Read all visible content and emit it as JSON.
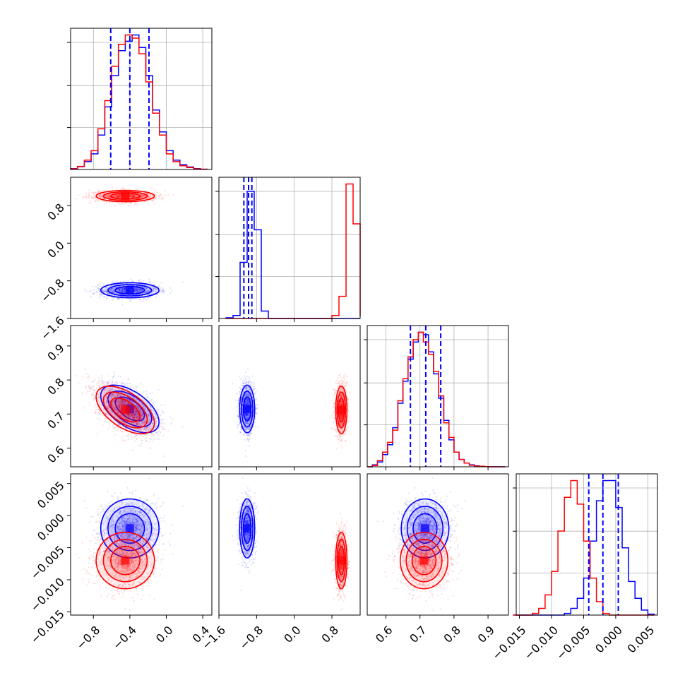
{
  "chart_data": {
    "type": "corner",
    "grid": true,
    "colors": {
      "blue": "#0000ff",
      "red": "#ff0000"
    },
    "series": [
      {
        "color": "blue",
        "means": [
          -0.4,
          -1.0,
          0.715,
          -0.002
        ],
        "sds": [
          0.16,
          0.08,
          0.035,
          0.0023
        ],
        "cross_corr_01": -0.55
      },
      {
        "color": "red",
        "means": [
          -0.45,
          1.0,
          0.712,
          -0.007
        ],
        "sds": [
          0.16,
          0.06,
          0.035,
          0.0022
        ],
        "cross_corr_01": -0.55
      }
    ],
    "quantile_lines": {
      "color": "blue",
      "p0": [
        -0.61,
        -0.4,
        -0.19
      ],
      "p1": [
        -1.07,
        -0.97,
        -0.9
      ],
      "p2": [
        0.672,
        0.717,
        0.761
      ],
      "p3": [
        -0.0042,
        -0.002,
        0.0004
      ]
    },
    "marginals": [
      {
        "param": 0,
        "bins": [
          -1.05,
          -0.975,
          -0.9,
          -0.825,
          -0.75,
          -0.675,
          -0.6,
          -0.525,
          -0.45,
          -0.375,
          -0.3,
          -0.225,
          -0.15,
          -0.075,
          0.0,
          0.075,
          0.15,
          0.225,
          0.3,
          0.375,
          0.45
        ],
        "blue": [
          0.3,
          0.9,
          2.5,
          5,
          11,
          20,
          30,
          38,
          41,
          43,
          39,
          30,
          19,
          12,
          6,
          3,
          1.5,
          0.8,
          0.3,
          0.1
        ],
        "red": [
          0.2,
          1,
          3,
          6,
          13,
          22,
          33,
          40,
          43,
          42,
          37,
          28,
          18,
          11,
          5,
          2.5,
          1.2,
          0.6,
          0.2,
          0.1
        ]
      },
      {
        "param": 1,
        "bins": [
          -1.45,
          -1.3,
          -1.15,
          -1.0,
          -0.85,
          -0.7,
          -0.55,
          -0.4,
          -0.25,
          -0.1,
          0.05,
          0.2,
          0.35,
          0.5,
          0.65,
          0.8,
          0.95,
          1.1,
          1.25,
          1.4
        ],
        "blue": [
          0.5,
          2,
          38,
          86,
          60,
          5,
          0,
          0,
          0,
          0,
          0,
          0,
          0,
          0,
          0,
          0,
          0,
          0,
          0
        ],
        "red": [
          0,
          0,
          0,
          0,
          0,
          0,
          0,
          0,
          0,
          0,
          0,
          0,
          0,
          0,
          0,
          2,
          15,
          91,
          64,
          1.5
        ]
      },
      {
        "param": 2,
        "bins": [
          0.545,
          0.56,
          0.575,
          0.59,
          0.605,
          0.62,
          0.635,
          0.65,
          0.665,
          0.68,
          0.695,
          0.71,
          0.725,
          0.74,
          0.755,
          0.77,
          0.785,
          0.8,
          0.815,
          0.83,
          0.845,
          0.86,
          0.875,
          0.89,
          0.905,
          0.92,
          0.935,
          0.95
        ],
        "blue": [
          0,
          0.8,
          2,
          5,
          9,
          16,
          26,
          35,
          44,
          51,
          55,
          54,
          47,
          38,
          28,
          19,
          11,
          6,
          3,
          1.5,
          0.8,
          0.4,
          0.2,
          0.1,
          0,
          0,
          0
        ],
        "red": [
          0,
          0.5,
          2.5,
          6,
          10,
          15,
          27,
          36,
          45,
          52,
          55,
          51,
          46,
          39,
          29,
          18,
          12,
          6,
          3,
          1.5,
          0.6,
          0.3,
          0.2,
          0.1,
          0,
          0,
          0
        ]
      },
      {
        "param": 3,
        "bins": [
          -0.016,
          -0.015,
          -0.014,
          -0.013,
          -0.012,
          -0.011,
          -0.01,
          -0.009,
          -0.008,
          -0.007,
          -0.006,
          -0.005,
          -0.004,
          -0.003,
          -0.002,
          -0.001,
          0.0,
          0.001,
          0.002,
          0.003,
          0.004,
          0.005,
          0.006
        ],
        "blue": [
          0,
          0,
          0,
          0,
          0,
          0,
          0,
          0,
          0.5,
          2,
          5,
          11,
          22,
          34,
          40,
          40,
          32,
          20,
          10,
          5,
          1.5,
          0.3
        ],
        "red": [
          0,
          0,
          0,
          0.5,
          2,
          6,
          13,
          25,
          35,
          40,
          33,
          22,
          11,
          4,
          0.5,
          0,
          0,
          0,
          0,
          0,
          0,
          0
        ]
      }
    ],
    "axes": [
      {
        "param": 0,
        "lim": [
          -1.05,
          0.5
        ],
        "ticks": [
          -0.8,
          -0.4,
          0.0,
          0.4
        ],
        "ticklabels": [
          "−0.8",
          "−0.4",
          "0.0",
          "0.4"
        ]
      },
      {
        "param": 1,
        "lim": [
          -1.6,
          1.4
        ],
        "ticks": [
          -1.6,
          -0.8,
          0.0,
          0.8
        ],
        "ticklabels": [
          "−1.6",
          "−0.8",
          "0.0",
          "0.8"
        ]
      },
      {
        "param": 2,
        "lim": [
          0.545,
          0.96
        ],
        "ticks": [
          0.6,
          0.7,
          0.8,
          0.9
        ],
        "ticklabels": [
          "0.6",
          "0.7",
          "0.8",
          "0.9"
        ]
      },
      {
        "param": 3,
        "lim": [
          -0.0155,
          0.0065
        ],
        "ticks": [
          -0.015,
          -0.01,
          -0.005,
          0.0,
          0.005
        ],
        "ticklabels": [
          "−0.015",
          "−0.010",
          "−0.005",
          "0.000",
          "0.005"
        ]
      }
    ]
  }
}
